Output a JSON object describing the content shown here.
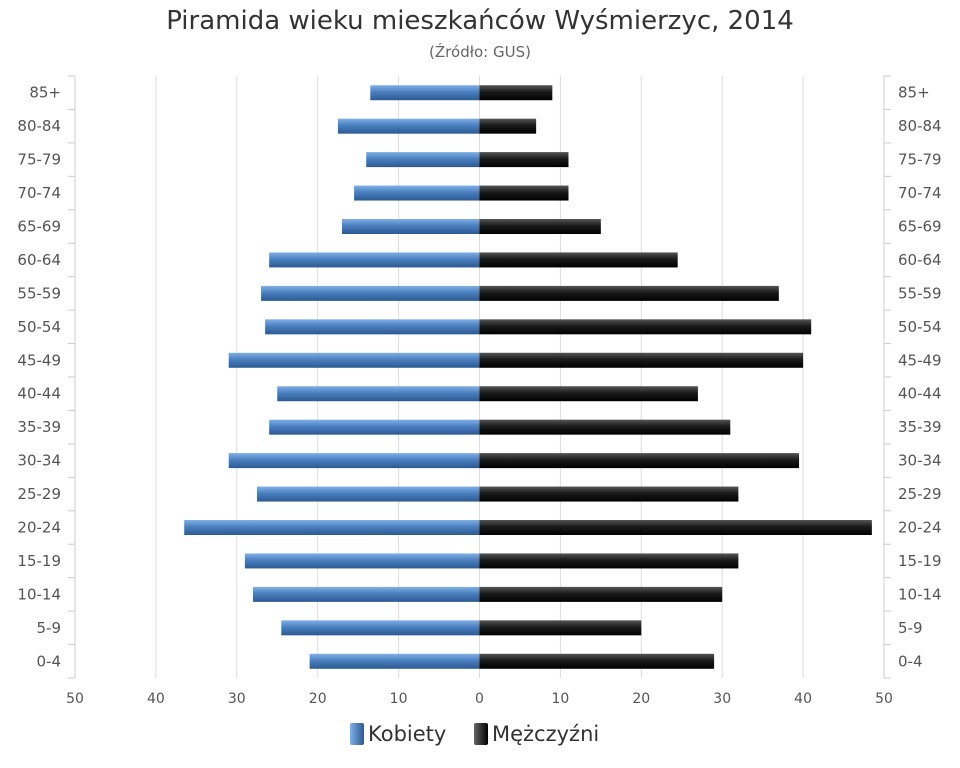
{
  "title": "Piramida wieku mieszkańców Wyśmierzyc, 2014",
  "subtitle": "(Źródło: GUS)",
  "colors": {
    "female": "#4a7fbf",
    "male": "#1a1a1a",
    "grid": "#dddddd",
    "label": "#555555"
  },
  "chart_data": {
    "type": "bar",
    "orientation": "horizontal-population-pyramid",
    "categories": [
      "85+",
      "80-84",
      "75-79",
      "70-74",
      "65-69",
      "60-64",
      "55-59",
      "50-54",
      "45-49",
      "40-44",
      "35-39",
      "30-34",
      "25-29",
      "20-24",
      "15-19",
      "10-14",
      "5-9",
      "0-4"
    ],
    "series": [
      {
        "name": "Kobiety",
        "values": [
          13.5,
          17.5,
          14,
          15.5,
          17,
          26,
          27,
          26.5,
          31,
          25,
          26,
          31,
          27.5,
          36.5,
          29,
          28,
          24.5,
          21
        ]
      },
      {
        "name": "Mężczyźni",
        "values": [
          9,
          7,
          11,
          11,
          15,
          24.5,
          37,
          41,
          40,
          27,
          31,
          39.5,
          32,
          48.5,
          32,
          30,
          20,
          29
        ]
      }
    ],
    "xlim": [
      -50,
      50
    ],
    "xticks": [
      "50",
      "40",
      "30",
      "20",
      "10",
      "0",
      "10",
      "20",
      "30",
      "40",
      "50"
    ],
    "grid": true,
    "legend": "bottom"
  },
  "legend": {
    "female_label": "Kobiety",
    "male_label": "Mężczyźni"
  }
}
